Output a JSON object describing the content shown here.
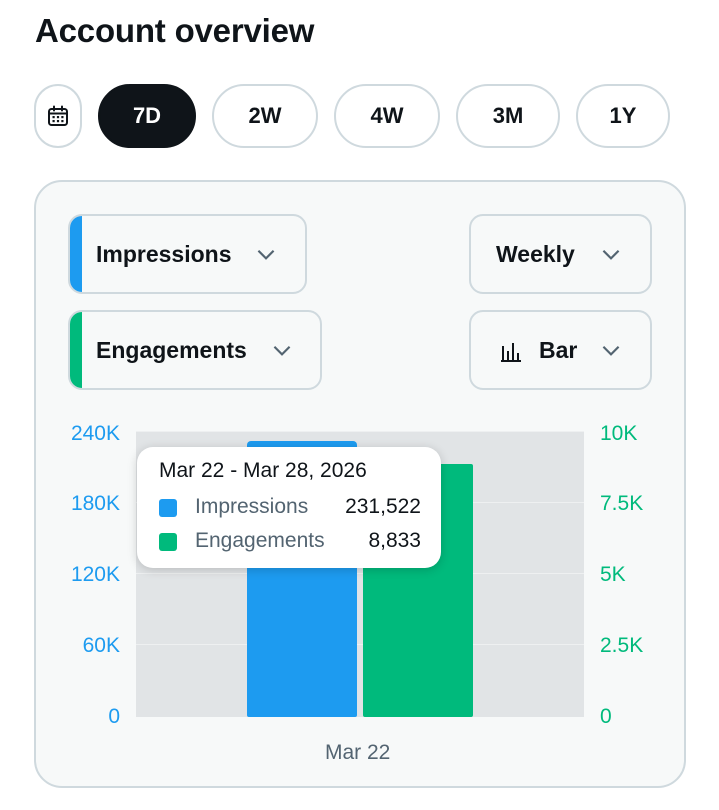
{
  "page": {
    "title": "Account overview"
  },
  "range_selector": {
    "calendar_icon": "calendar-icon",
    "options": [
      "7D",
      "2W",
      "4W",
      "3M",
      "1Y"
    ],
    "selected": "7D"
  },
  "controls": {
    "metric_primary": {
      "label": "Impressions",
      "color": "#1d9bf0",
      "icon": "chevron-down-icon"
    },
    "metric_secondary": {
      "label": "Engagements",
      "color": "#00ba7c",
      "icon": "chevron-down-icon"
    },
    "interval": {
      "label": "Weekly",
      "icon": "chevron-down-icon"
    },
    "chart_type": {
      "label": "Bar",
      "icon": "bar-chart-icon"
    }
  },
  "chart_data": {
    "type": "bar",
    "categories": [
      "Mar 22"
    ],
    "series": [
      {
        "name": "Impressions",
        "values": [
          231522
        ],
        "axis": "left",
        "color": "#1d9bf0"
      },
      {
        "name": "Engagements",
        "values": [
          8833
        ],
        "axis": "right",
        "color": "#00ba7c"
      }
    ],
    "y_left": {
      "ticks": [
        "240K",
        "180K",
        "120K",
        "60K",
        "0"
      ],
      "ylim": [
        0,
        240000
      ]
    },
    "y_right": {
      "ticks": [
        "10K",
        "7.5K",
        "5K",
        "2.5K",
        "0"
      ],
      "ylim": [
        0,
        10000
      ]
    },
    "grid": true
  },
  "tooltip": {
    "title": "Mar 22 - Mar 28, 2026",
    "rows": [
      {
        "name": "Impressions",
        "value": "231,522",
        "color": "#1d9bf0"
      },
      {
        "name": "Engagements",
        "value": "8,833",
        "color": "#00ba7c"
      }
    ]
  }
}
